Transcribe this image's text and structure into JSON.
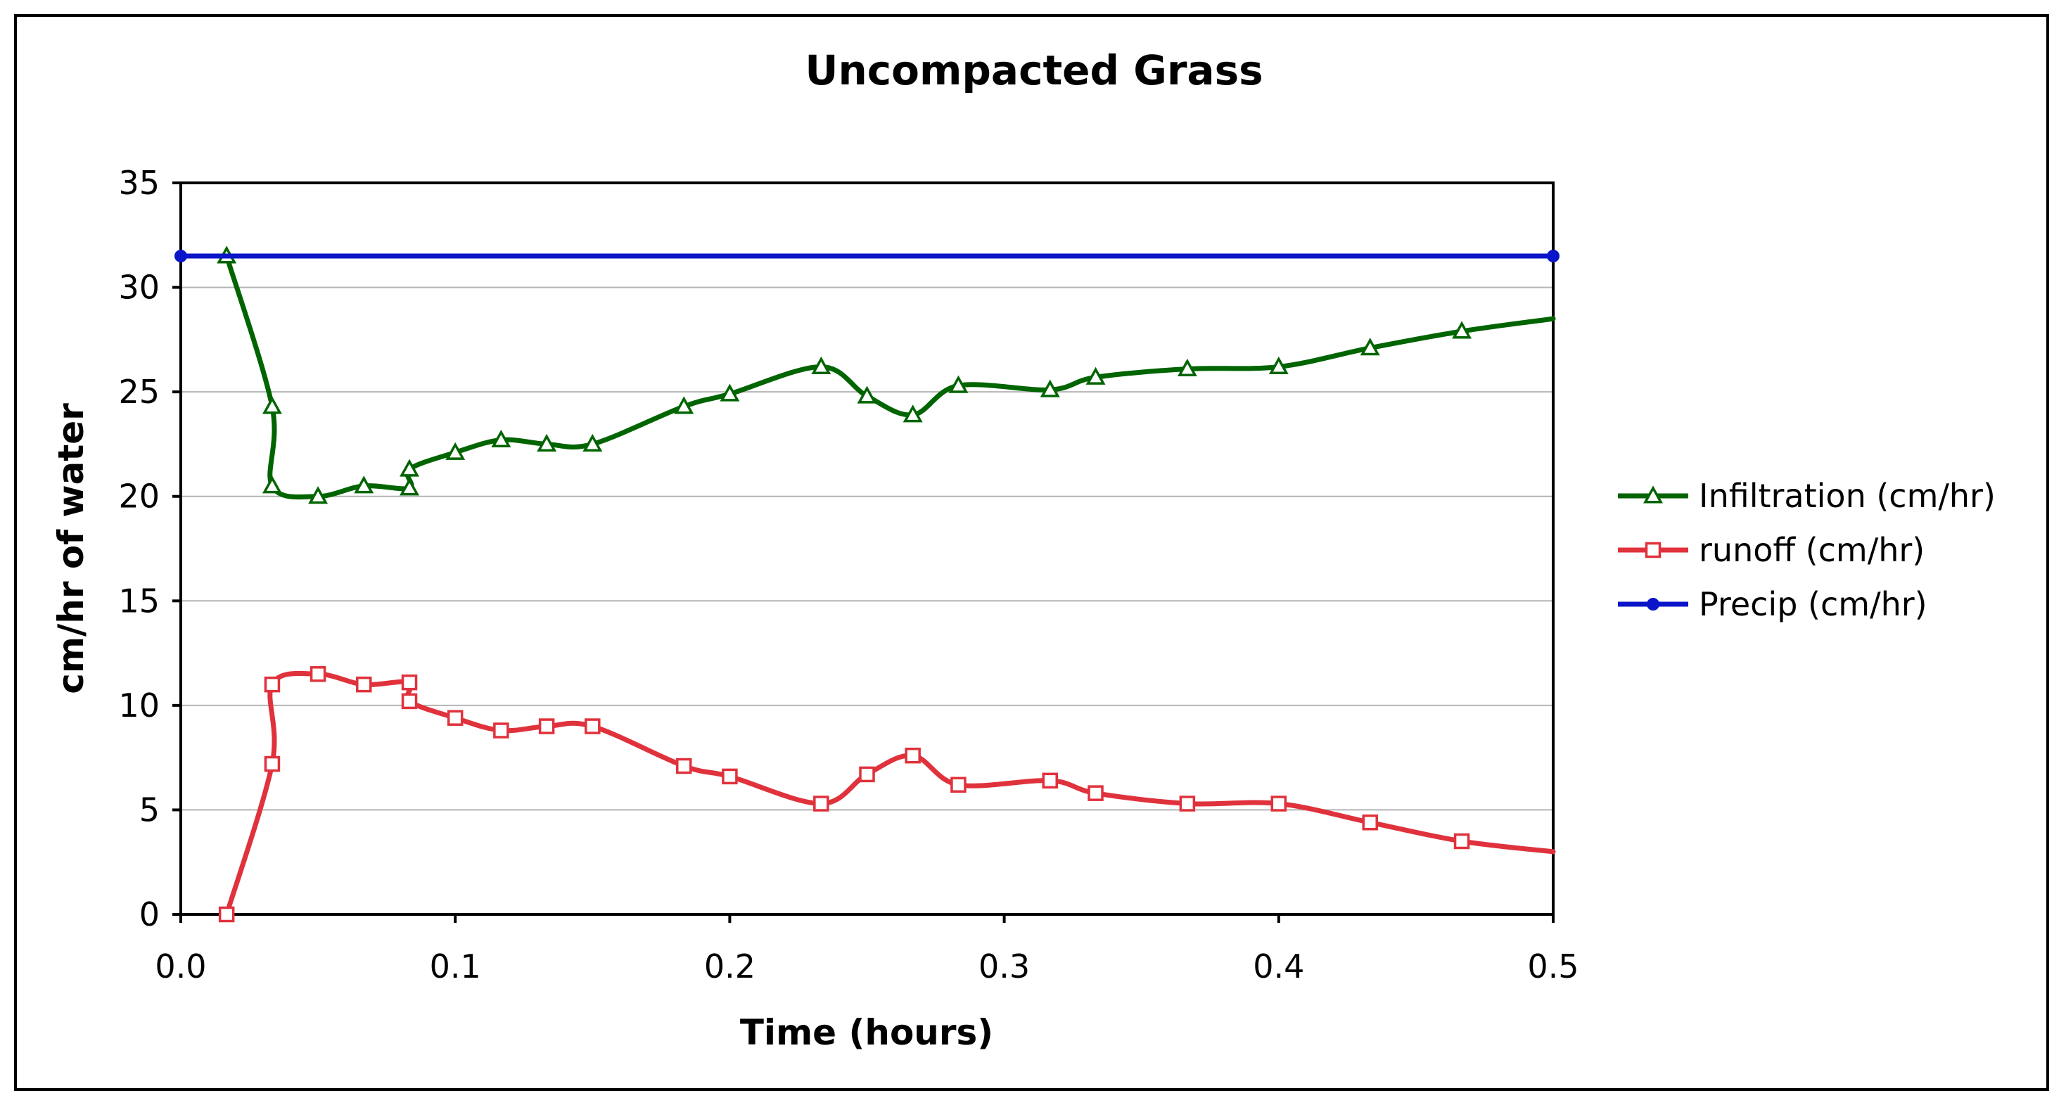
{
  "chart_data": {
    "type": "line",
    "title": "Uncompacted Grass",
    "xlabel": "Time (hours)",
    "ylabel": "cm/hr of water",
    "xlim": [
      0.0,
      0.5
    ],
    "ylim": [
      0,
      35
    ],
    "x_ticks": [
      "0.0",
      "0.1",
      "0.2",
      "0.3",
      "0.4",
      "0.5"
    ],
    "y_ticks": [
      "0",
      "5",
      "10",
      "15",
      "20",
      "25",
      "30",
      "35"
    ],
    "grid": "horizontal",
    "legend_position": "right",
    "series": [
      {
        "name": "Infiltration (cm/hr)",
        "color": "#006400",
        "marker": "triangle",
        "x": [
          0.0167,
          0.0333,
          0.0333,
          0.05,
          0.0667,
          0.0833,
          0.0833,
          0.1,
          0.1167,
          0.1333,
          0.15,
          0.1833,
          0.2,
          0.2333,
          0.25,
          0.2667,
          0.2833,
          0.3167,
          0.3333,
          0.3667,
          0.4,
          0.4333,
          0.4667,
          0.5
        ],
        "y": [
          31.5,
          24.3,
          20.5,
          20.0,
          20.5,
          20.4,
          21.3,
          22.1,
          22.7,
          22.5,
          22.5,
          24.3,
          24.9,
          26.2,
          24.8,
          23.9,
          25.3,
          25.1,
          25.7,
          26.1,
          26.2,
          27.1,
          27.9,
          28.5
        ]
      },
      {
        "name": "runoff (cm/hr)",
        "color": "#e0323c",
        "marker": "square",
        "x": [
          0.0167,
          0.0333,
          0.0333,
          0.05,
          0.0667,
          0.0833,
          0.0833,
          0.1,
          0.1167,
          0.1333,
          0.15,
          0.1833,
          0.2,
          0.2333,
          0.25,
          0.2667,
          0.2833,
          0.3167,
          0.3333,
          0.3667,
          0.4,
          0.4333,
          0.4667,
          0.5
        ],
        "y": [
          0.0,
          7.2,
          11.0,
          11.5,
          11.0,
          11.1,
          10.2,
          9.4,
          8.8,
          9.0,
          9.0,
          7.1,
          6.6,
          5.3,
          6.7,
          7.6,
          6.2,
          6.4,
          5.8,
          5.3,
          5.3,
          4.4,
          3.5,
          3.0
        ]
      },
      {
        "name": "Precip (cm/hr)",
        "color": "#0a14c8",
        "marker": "circle",
        "x": [
          0.0,
          0.5
        ],
        "y": [
          31.5,
          31.5
        ]
      }
    ],
    "marker_flags": [
      [
        true,
        true,
        true,
        true,
        true,
        true,
        true,
        true,
        true,
        true,
        true,
        true,
        true,
        true,
        true,
        true,
        true,
        true,
        true,
        true,
        true,
        true,
        true,
        false
      ],
      [
        true,
        true,
        true,
        true,
        true,
        true,
        true,
        true,
        true,
        true,
        true,
        true,
        true,
        true,
        true,
        true,
        true,
        true,
        true,
        true,
        true,
        true,
        true,
        false
      ],
      [
        true,
        true
      ]
    ]
  }
}
